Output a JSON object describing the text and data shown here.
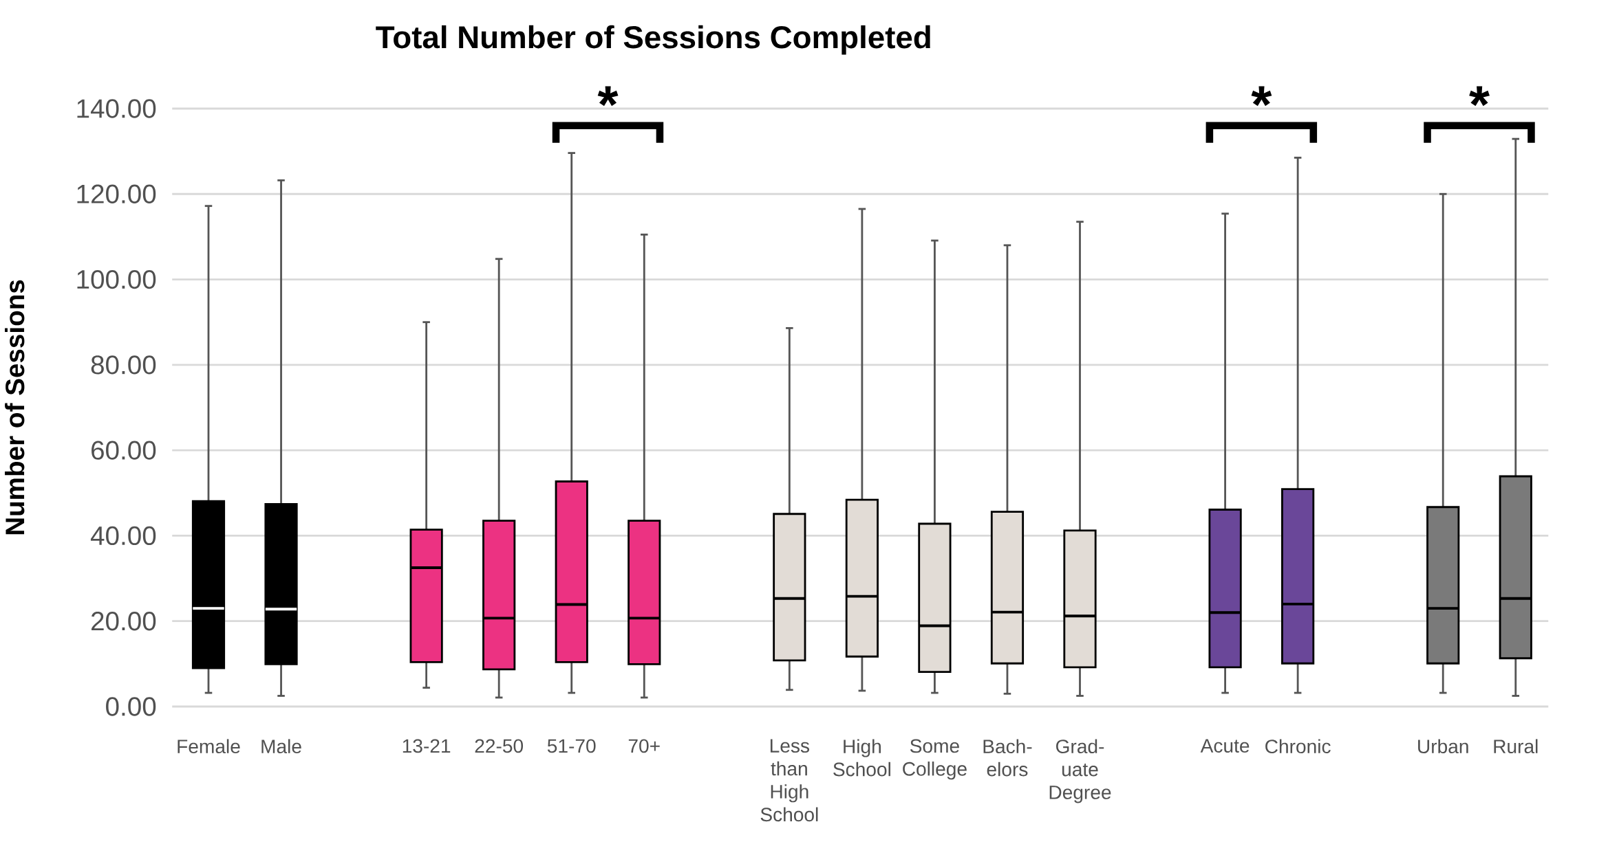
{
  "chart_data": {
    "type": "box",
    "title": "Total Number of Sessions Completed",
    "ylabel": "Number of Sessions",
    "categories": [
      "Female",
      "Male",
      null,
      "13-21",
      "22-50",
      "51-70",
      "70+",
      null,
      "Less than High School",
      "High School",
      "Some College",
      "Bach-elors",
      "Grad-uate Degree",
      null,
      "Acute",
      "Chronic",
      null,
      "Urban",
      "Rural"
    ],
    "boxes": [
      {
        "low": 3.2,
        "q1": 9.0,
        "median": 23.0,
        "q3": 48.1,
        "high": 117.2
      },
      {
        "low": 2.5,
        "q1": 9.9,
        "median": 22.8,
        "q3": 47.4,
        "high": 123.2
      },
      null,
      {
        "low": 4.4,
        "q1": 10.4,
        "median": 32.5,
        "q3": 41.4,
        "high": 90.0
      },
      {
        "low": 2.1,
        "q1": 8.7,
        "median": 20.7,
        "q3": 43.5,
        "high": 104.8
      },
      {
        "low": 3.2,
        "q1": 10.4,
        "median": 23.9,
        "q3": 52.7,
        "high": 129.6
      },
      {
        "low": 2.1,
        "q1": 9.9,
        "median": 20.7,
        "q3": 43.5,
        "high": 110.5
      },
      null,
      {
        "low": 3.9,
        "q1": 10.8,
        "median": 25.3,
        "q3": 45.1,
        "high": 88.6
      },
      {
        "low": 3.7,
        "q1": 11.7,
        "median": 25.8,
        "q3": 48.4,
        "high": 116.5
      },
      {
        "low": 3.2,
        "q1": 8.1,
        "median": 18.9,
        "q3": 42.8,
        "high": 109.1
      },
      {
        "low": 3.0,
        "q1": 10.1,
        "median": 22.1,
        "q3": 45.6,
        "high": 108.0
      },
      {
        "low": 2.5,
        "q1": 9.2,
        "median": 21.2,
        "q3": 41.2,
        "high": 113.5
      },
      null,
      {
        "low": 3.2,
        "q1": 9.2,
        "median": 22.0,
        "q3": 46.1,
        "high": 115.4
      },
      {
        "low": 3.2,
        "q1": 10.1,
        "median": 24.0,
        "q3": 50.9,
        "high": 128.5
      },
      null,
      {
        "low": 3.2,
        "q1": 10.1,
        "median": 23.0,
        "q3": 46.7,
        "high": 120.0
      },
      {
        "low": 2.5,
        "q1": 11.3,
        "median": 25.3,
        "q3": 53.9,
        "high": 132.9
      }
    ],
    "colors": [
      "#000000",
      "#000000",
      null,
      "#ec3282",
      "#ec3282",
      "#ec3282",
      "#ec3282",
      null,
      "#e2dcd6",
      "#e2dcd6",
      "#e2dcd6",
      "#e2dcd6",
      "#e2dcd6",
      null,
      "#6a4799",
      "#6a4799",
      null,
      "#7a7a7a",
      "#7a7a7a"
    ],
    "ylim": [
      0,
      140
    ],
    "yticks": [
      {
        "value": 0,
        "label": "0.00"
      },
      {
        "value": 20,
        "label": "20.00"
      },
      {
        "value": 40,
        "label": "40.00"
      },
      {
        "value": 60,
        "label": "60.00"
      },
      {
        "value": 80,
        "label": "80.00"
      },
      {
        "value": 100,
        "label": "100.00"
      },
      {
        "value": 120,
        "label": "120.00"
      },
      {
        "value": 140,
        "label": "140.00"
      }
    ],
    "grid": "y",
    "annotations": [
      "*",
      "*",
      "*"
    ]
  }
}
